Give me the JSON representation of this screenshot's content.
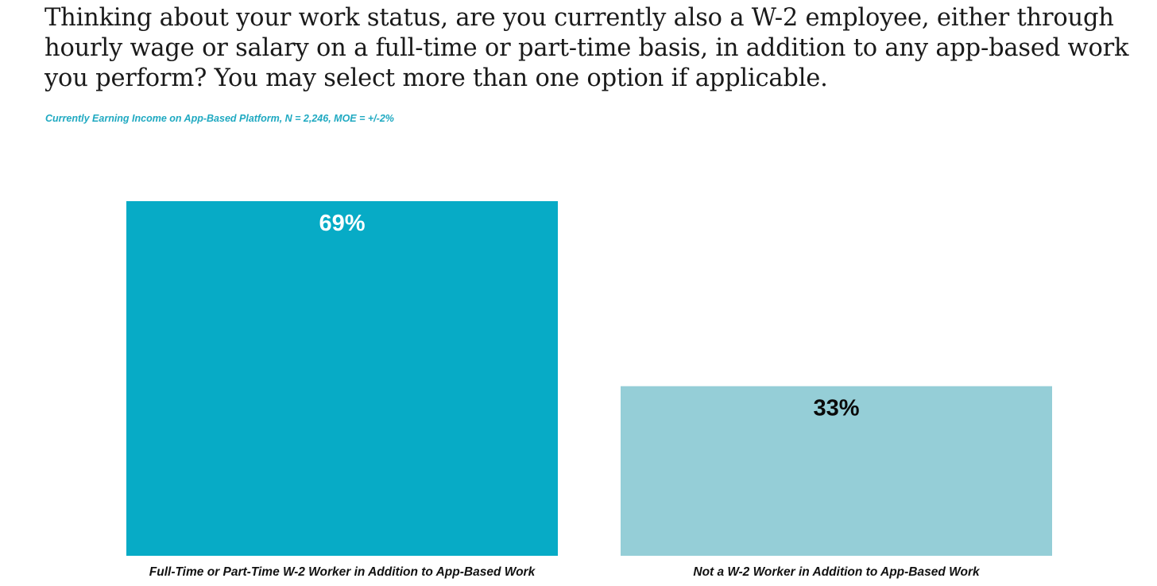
{
  "title": "Thinking about your work status, are you currently also a W-2 employee, either through hourly wage or salary on a full-time or part-time basis, in addition to any app-based work you perform? You may select more than one option if applicable.",
  "subtitle": "Currently Earning Income on App-Based Platform, N = 2,246, MOE = +/-2%",
  "colors": {
    "title": "#1a1a1a",
    "subtitle": "#1fa9c1",
    "bars": [
      "#07abc6",
      "#95ced7"
    ],
    "bar_labels": [
      "#ffffff",
      "#0a0a0a"
    ]
  },
  "chart_data": {
    "type": "bar",
    "categories": [
      "Full-Time or Part-Time W-2 Worker in Addition to App-Based Work",
      "Not a W-2 Worker in Addition to App-Based Work"
    ],
    "values": [
      69,
      33
    ],
    "data_labels": [
      "69%",
      "33%"
    ],
    "ylim": [
      0,
      69
    ],
    "grid": false,
    "legend": "none",
    "xlabel": "",
    "ylabel": ""
  }
}
